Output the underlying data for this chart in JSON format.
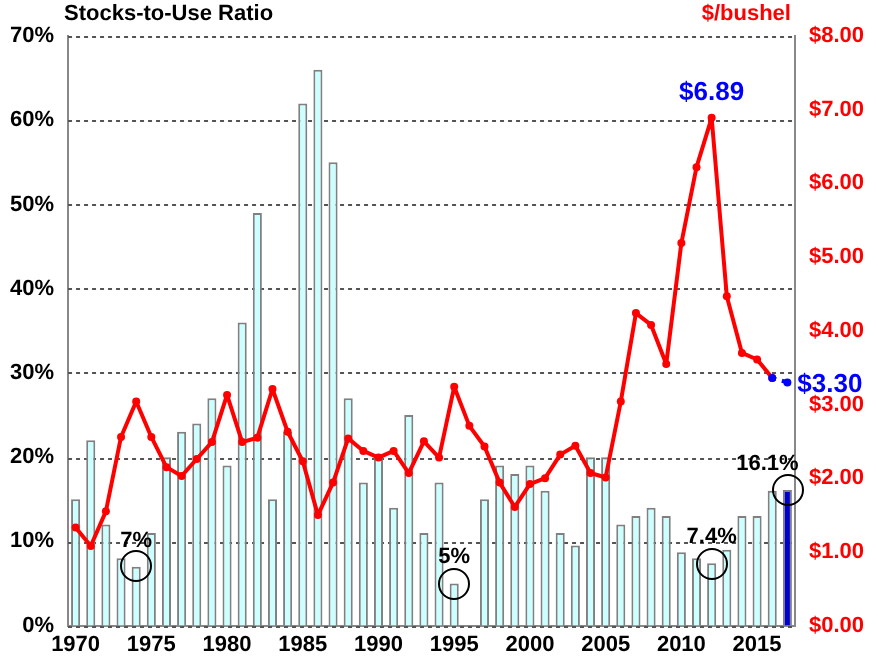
{
  "chart_data": {
    "type": "bar",
    "ylabel": "Stocks-to-Use Ratio",
    "y2label": "$/bushel",
    "categories": [
      "1970",
      null,
      null,
      null,
      null,
      "1975",
      null,
      null,
      null,
      null,
      "1980",
      null,
      null,
      null,
      null,
      "1985",
      null,
      null,
      null,
      null,
      "1990",
      null,
      null,
      null,
      null,
      "1995",
      null,
      null,
      null,
      null,
      "2000",
      null,
      null,
      null,
      null,
      "2005",
      null,
      null,
      null,
      null,
      "2010",
      null,
      null,
      null,
      null,
      "2015",
      null,
      null
    ],
    "series": [
      {
        "color": "#ccffff",
        "colors": [
          null,
          null,
          null,
          null,
          null,
          null,
          null,
          null,
          null,
          null,
          null,
          null,
          null,
          null,
          null,
          null,
          null,
          null,
          null,
          null,
          null,
          null,
          null,
          null,
          null,
          null,
          null,
          null,
          null,
          null,
          null,
          null,
          null,
          null,
          null,
          null,
          null,
          null,
          null,
          null,
          null,
          null,
          null,
          null,
          null,
          null,
          null,
          "#0000cc"
        ],
        "values": [
          15,
          22,
          12,
          8,
          7,
          11,
          20,
          23,
          24,
          27,
          19,
          36,
          49,
          15,
          23,
          62,
          66,
          55,
          27,
          17,
          20,
          14,
          25,
          11,
          17,
          5,
          null,
          15,
          19,
          18,
          19,
          16,
          11,
          9.5,
          20,
          20,
          12,
          13,
          14,
          13,
          8.7,
          8,
          7.4,
          9,
          13,
          13,
          16,
          16.1
        ],
        "value_labels": [
          null,
          null,
          null,
          null,
          "7%",
          null,
          null,
          null,
          null,
          null,
          null,
          null,
          null,
          null,
          null,
          null,
          null,
          null,
          null,
          null,
          null,
          null,
          null,
          null,
          null,
          "5%",
          null,
          null,
          null,
          null,
          null,
          null,
          null,
          null,
          null,
          null,
          null,
          null,
          null,
          null,
          null,
          null,
          "7.4%",
          null,
          null,
          null,
          null,
          "16.1%"
        ]
      },
      {
        "type": "line",
        "axis": "y2",
        "color": "#ff0000",
        "marker": "circle",
        "values": [
          1.33,
          1.08,
          1.55,
          2.56,
          3.04,
          2.56,
          2.15,
          2.03,
          2.26,
          2.49,
          3.13,
          2.49,
          2.55,
          3.21,
          2.63,
          2.23,
          1.5,
          1.94,
          2.54,
          2.37,
          2.28,
          2.37,
          2.07,
          2.5,
          2.28,
          3.24,
          2.71,
          2.43,
          1.94,
          1.61,
          1.92,
          2.0,
          2.32,
          2.44,
          2.07,
          2.01,
          3.04,
          4.24,
          4.08,
          3.55,
          5.19,
          6.22,
          6.89,
          4.47,
          3.7,
          3.61,
          3.36,
          null
        ],
        "value_labels": [
          null,
          null,
          null,
          null,
          null,
          null,
          null,
          null,
          null,
          null,
          null,
          null,
          null,
          null,
          null,
          null,
          null,
          null,
          null,
          null,
          null,
          null,
          null,
          null,
          null,
          null,
          null,
          null,
          null,
          null,
          null,
          null,
          null,
          null,
          null,
          null,
          null,
          null,
          null,
          null,
          null,
          null,
          "$6.89",
          null,
          null,
          null,
          null,
          null
        ]
      },
      {
        "type": "line",
        "axis": "y2",
        "color": "#0000ff",
        "marker": "circle",
        "line_style": "dotted",
        "values": [
          null,
          null,
          null,
          null,
          null,
          null,
          null,
          null,
          null,
          null,
          null,
          null,
          null,
          null,
          null,
          null,
          null,
          null,
          null,
          null,
          null,
          null,
          null,
          null,
          null,
          null,
          null,
          null,
          null,
          null,
          null,
          null,
          null,
          null,
          null,
          null,
          null,
          null,
          null,
          null,
          null,
          null,
          null,
          null,
          null,
          null,
          3.36,
          3.3
        ],
        "value_labels": [
          null,
          null,
          null,
          null,
          null,
          null,
          null,
          null,
          null,
          null,
          null,
          null,
          null,
          null,
          null,
          null,
          null,
          null,
          null,
          null,
          null,
          null,
          null,
          null,
          null,
          null,
          null,
          null,
          null,
          null,
          null,
          null,
          null,
          null,
          null,
          null,
          null,
          null,
          null,
          null,
          null,
          null,
          null,
          null,
          null,
          null,
          null,
          "$3.30"
        ]
      }
    ],
    "ylim": [
      0,
      70
    ],
    "yticks": [
      {
        "value": 0,
        "label": "0%"
      },
      {
        "value": 10,
        "label": "10%"
      },
      {
        "value": 20,
        "label": "20%"
      },
      {
        "value": 30,
        "label": "30%"
      },
      {
        "value": 40,
        "label": "40%"
      },
      {
        "value": 50,
        "label": "50%"
      },
      {
        "value": 60,
        "label": "60%"
      },
      {
        "value": 70,
        "label": "70%"
      }
    ],
    "y2lim": [
      0,
      8
    ],
    "y2ticks": [
      {
        "value": 0,
        "label": "$0.00"
      },
      {
        "value": 1,
        "label": "$1.00"
      },
      {
        "value": 2,
        "label": "$2.00"
      },
      {
        "value": 3,
        "label": "$3.00"
      },
      {
        "value": 4,
        "label": "$4.00"
      },
      {
        "value": 5,
        "label": "$5.00"
      },
      {
        "value": 6,
        "label": "$6.00"
      },
      {
        "value": 7,
        "label": "$7.00"
      },
      {
        "value": 8,
        "label": "$8.00"
      }
    ],
    "grid": "y",
    "legend": false
  }
}
